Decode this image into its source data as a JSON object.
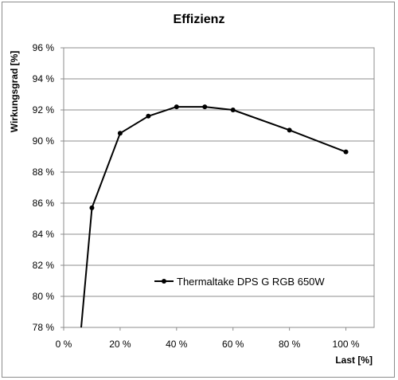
{
  "chart_data": {
    "type": "line",
    "title": "Effizienz",
    "xlabel": "Last [%]",
    "ylabel": "Wirkungsgrad [%]",
    "xlim": [
      0,
      110
    ],
    "ylim": [
      78,
      96
    ],
    "grid": true,
    "legend_position": "inside-lower-right",
    "x_ticks": [
      {
        "value": 0,
        "label": "0 %"
      },
      {
        "value": 20,
        "label": "20 %"
      },
      {
        "value": 40,
        "label": "40 %"
      },
      {
        "value": 60,
        "label": "60 %"
      },
      {
        "value": 80,
        "label": "80 %"
      },
      {
        "value": 100,
        "label": "100 %"
      }
    ],
    "y_ticks": [
      {
        "value": 78,
        "label": "78 %"
      },
      {
        "value": 80,
        "label": "80 %"
      },
      {
        "value": 82,
        "label": "82 %"
      },
      {
        "value": 84,
        "label": "84 %"
      },
      {
        "value": 86,
        "label": "86 %"
      },
      {
        "value": 88,
        "label": "88 %"
      },
      {
        "value": 90,
        "label": "90 %"
      },
      {
        "value": 92,
        "label": "92 %"
      },
      {
        "value": 94,
        "label": "94 %"
      },
      {
        "value": 96,
        "label": "96 %"
      }
    ],
    "series": [
      {
        "name": "Thermaltake DPS G RGB 650W",
        "color": "#000000",
        "x": [
          10,
          20,
          30,
          40,
          50,
          60,
          80,
          100
        ],
        "y": [
          85.7,
          90.5,
          91.6,
          92.2,
          92.2,
          92.0,
          90.7,
          89.3
        ],
        "line_start": {
          "x": 6.2,
          "y": 78
        }
      }
    ]
  }
}
